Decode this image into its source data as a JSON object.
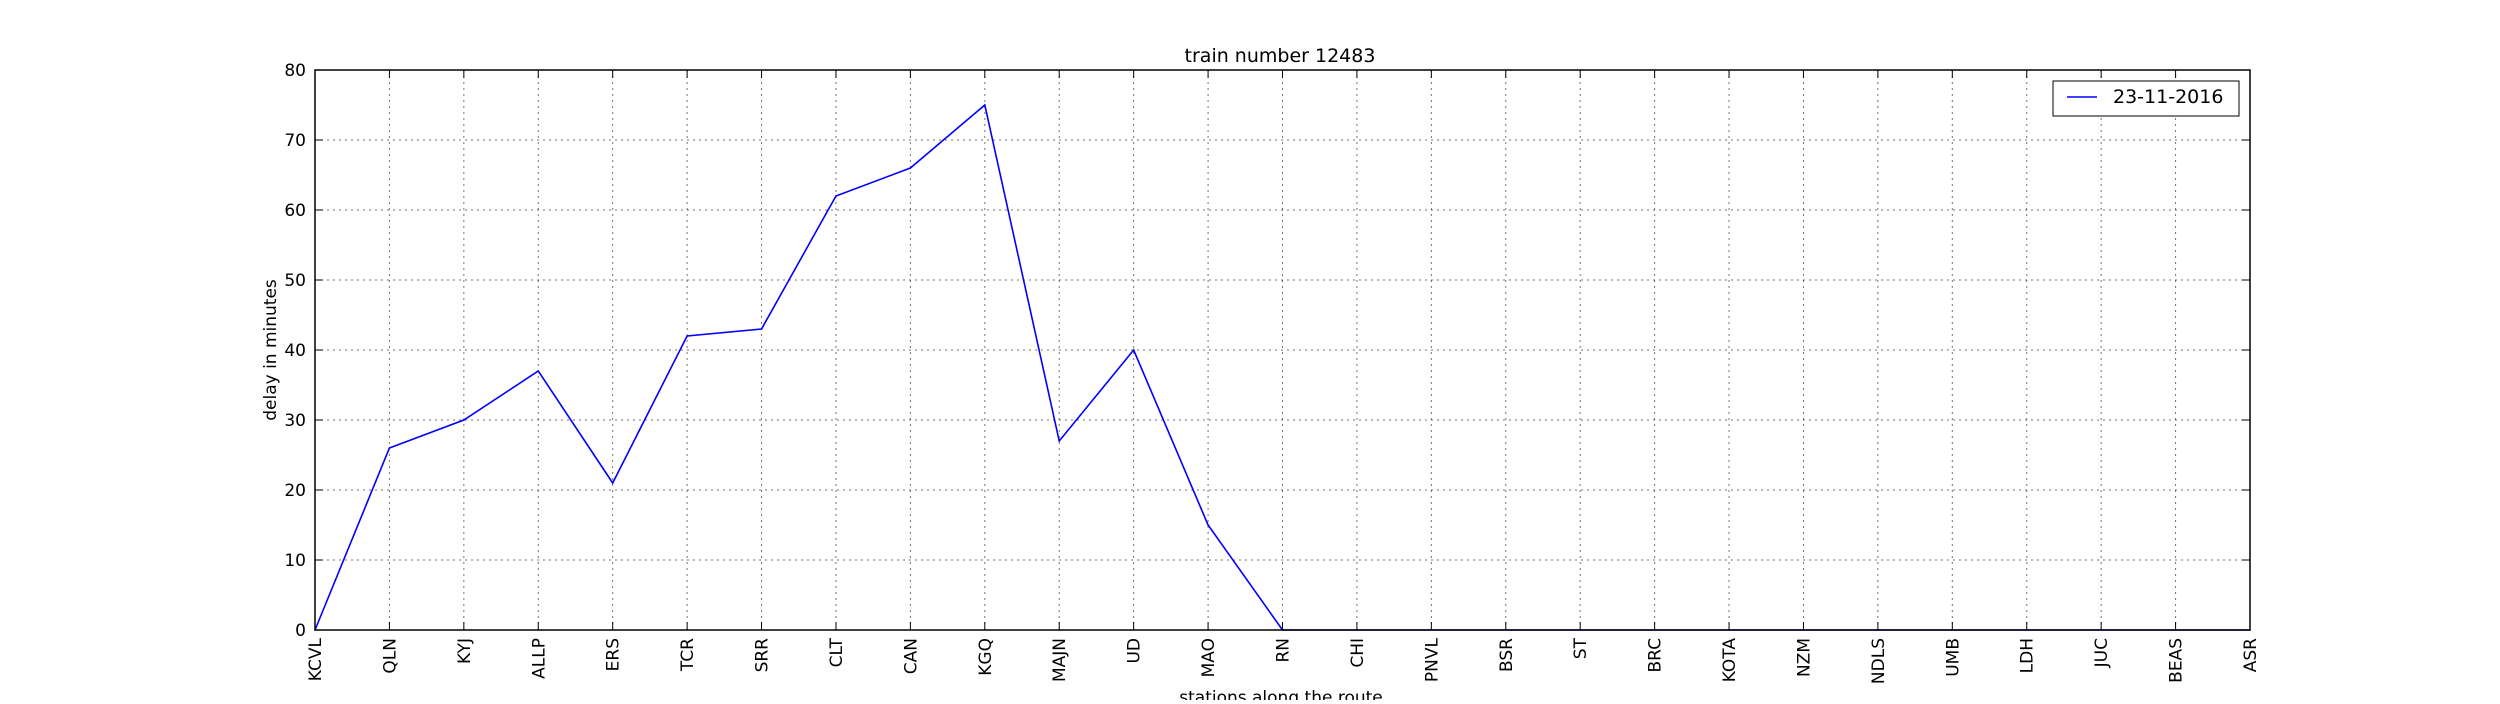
{
  "chart_data": {
    "type": "line",
    "title": "train number 12483",
    "xlabel": "stations along the route",
    "ylabel": "delay in minutes",
    "categories": [
      "KCVL",
      "QLN",
      "KYJ",
      "ALLP",
      "ERS",
      "TCR",
      "SRR",
      "CLT",
      "CAN",
      "KGQ",
      "MAJN",
      "UD",
      "MAO",
      "RN",
      "CHI",
      "PNVL",
      "BSR",
      "ST",
      "BRC",
      "KOTA",
      "NZM",
      "NDLS",
      "UMB",
      "LDH",
      "JUC",
      "BEAS",
      "ASR"
    ],
    "series": [
      {
        "name": "23-11-2016",
        "color": "#0000ff",
        "values": [
          0,
          26,
          30,
          37,
          21,
          42,
          43,
          62,
          66,
          75,
          27,
          40,
          15,
          0,
          0,
          0,
          0,
          0,
          0,
          0,
          0,
          0,
          0,
          0,
          0,
          0,
          0
        ]
      }
    ],
    "ylim": [
      0,
      80
    ],
    "yticks": [
      0,
      10,
      20,
      30,
      40,
      50,
      60,
      70,
      80
    ],
    "grid": true,
    "legend_position": "top-right"
  }
}
